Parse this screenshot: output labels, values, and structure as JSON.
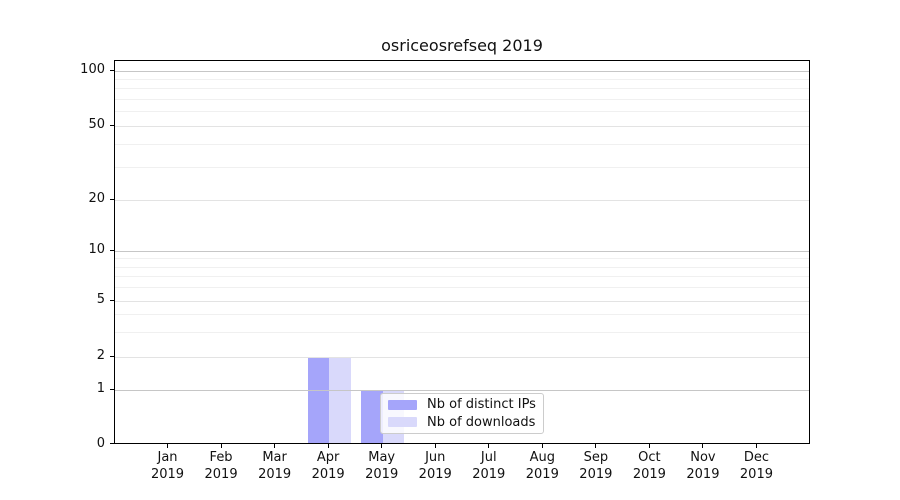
{
  "chart_data": {
    "type": "bar",
    "title": "osriceosrefseq 2019",
    "categories": [
      "Jan 2019",
      "Feb 2019",
      "Mar 2019",
      "Apr 2019",
      "May 2019",
      "Jun 2019",
      "Jul 2019",
      "Aug 2019",
      "Sep 2019",
      "Oct 2019",
      "Nov 2019",
      "Dec 2019"
    ],
    "series": [
      {
        "name": "Nb of distinct IPs",
        "color": "#a5a5fa",
        "values": [
          0,
          0,
          0,
          2,
          1,
          0,
          0,
          0,
          0,
          0,
          0,
          0
        ]
      },
      {
        "name": "Nb of downloads",
        "color": "#d9d9fb",
        "values": [
          0,
          0,
          0,
          2,
          1,
          0,
          0,
          0,
          0,
          0,
          0,
          0
        ]
      }
    ],
    "xlabel": "",
    "ylabel": "",
    "yscale": "symlog",
    "ylim": [
      0,
      113
    ],
    "yticks": [
      0,
      1,
      2,
      5,
      10,
      20,
      50,
      100
    ],
    "y_major_gridlines": [
      1,
      10,
      100
    ],
    "y_labeled_minor_gridlines": [
      2,
      5,
      20,
      50
    ],
    "y_minor_gridlines": [
      3,
      4,
      6,
      7,
      8,
      9,
      30,
      40,
      60,
      70,
      80,
      90
    ],
    "grid": true,
    "legend_position": "inside-lower-center"
  },
  "colors": {
    "background": "#ffffff",
    "axis": "#000000",
    "text": "#111111",
    "major_grid": "#c6c6c6",
    "labeled_grid": "#e3e3e3",
    "minor_grid": "#f0f0f0",
    "legend_border": "#cccccc"
  }
}
